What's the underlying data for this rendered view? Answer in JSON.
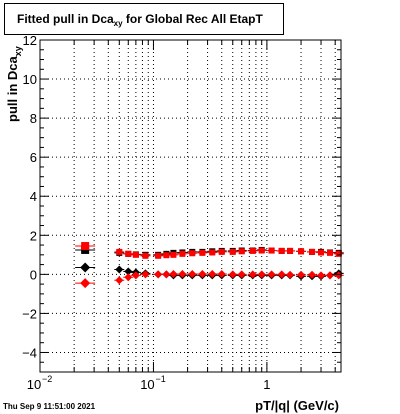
{
  "title": {
    "main": "Fitted pull in Dca",
    "sub": "xy",
    "rest": "  for Global Rec All EtapT"
  },
  "date_stamp": "Thu Sep  9 11:51:00 2021",
  "chart_data": {
    "type": "scatter",
    "xlabel": "pT/|q| (GeV/c)",
    "ylabel": "pull in Dca",
    "ylabel_sub": "xy",
    "xscale": "log",
    "xlim": [
      0.01,
      4.5
    ],
    "ylim": [
      -5,
      12
    ],
    "grid": true,
    "yticks": [
      -4,
      -2,
      0,
      2,
      4,
      6,
      8,
      10,
      12
    ],
    "ytick_labels": [
      "−4",
      "−2",
      "0",
      "2",
      "4",
      "6",
      "8",
      "10",
      "12"
    ],
    "xticks": [
      0.01,
      0.1,
      1
    ],
    "xtick_labels": [
      "10",
      "10",
      "1"
    ],
    "xtick_exponents": [
      "−2",
      "−1",
      ""
    ],
    "series": [
      {
        "color": "#000000",
        "marker": "square",
        "x": [
          0.025,
          0.05,
          0.06,
          0.07,
          0.085,
          0.11,
          0.13,
          0.15,
          0.18,
          0.22,
          0.27,
          0.33,
          0.4,
          0.5,
          0.6,
          0.75,
          0.9,
          1.1,
          1.35,
          1.6,
          2.0,
          2.5,
          3.0,
          3.6,
          4.3
        ],
        "y": [
          1.25,
          1.1,
          1.05,
          1.02,
          1.0,
          1.0,
          1.05,
          1.1,
          1.12,
          1.15,
          1.15,
          1.18,
          1.2,
          1.2,
          1.22,
          1.22,
          1.25,
          1.22,
          1.2,
          1.2,
          1.18,
          1.15,
          1.15,
          1.12,
          1.1
        ]
      },
      {
        "color": "#ff0000",
        "marker": "square",
        "x": [
          0.025,
          0.05,
          0.06,
          0.07,
          0.085,
          0.11,
          0.13,
          0.15,
          0.18,
          0.22,
          0.27,
          0.33,
          0.4,
          0.5,
          0.6,
          0.75,
          0.9,
          1.1,
          1.35,
          1.6,
          2.0,
          2.5,
          3.0,
          3.6,
          4.3
        ],
        "y": [
          1.45,
          1.15,
          1.05,
          1.0,
          0.95,
          0.95,
          0.98,
          1.0,
          1.05,
          1.08,
          1.1,
          1.12,
          1.15,
          1.15,
          1.18,
          1.2,
          1.22,
          1.22,
          1.2,
          1.2,
          1.18,
          1.15,
          1.12,
          1.1,
          1.05
        ]
      },
      {
        "color": "#000000",
        "marker": "diamond",
        "x": [
          0.025,
          0.05,
          0.06,
          0.07,
          0.085,
          0.11,
          0.13,
          0.15,
          0.18,
          0.22,
          0.27,
          0.33,
          0.4,
          0.5,
          0.6,
          0.75,
          0.9,
          1.1,
          1.35,
          1.6,
          2.0,
          2.5,
          3.0,
          3.6,
          4.3
        ],
        "y": [
          0.35,
          0.25,
          0.15,
          0.1,
          0.05,
          0.0,
          0.0,
          -0.05,
          -0.05,
          -0.05,
          -0.05,
          -0.05,
          -0.05,
          -0.05,
          -0.05,
          -0.05,
          -0.05,
          -0.05,
          -0.05,
          -0.05,
          -0.1,
          -0.1,
          -0.1,
          -0.05,
          0.05
        ]
      },
      {
        "color": "#ff0000",
        "marker": "diamond",
        "x": [
          0.025,
          0.05,
          0.06,
          0.07,
          0.085,
          0.11,
          0.13,
          0.15,
          0.18,
          0.22,
          0.27,
          0.33,
          0.4,
          0.5,
          0.6,
          0.75,
          0.9,
          1.1,
          1.35,
          1.6,
          2.0,
          2.5,
          3.0,
          3.6,
          4.3
        ],
        "y": [
          -0.45,
          -0.3,
          -0.15,
          -0.05,
          0.0,
          0.0,
          0.0,
          0.02,
          0.02,
          0.02,
          0.02,
          0.02,
          0.02,
          0.0,
          0.0,
          0.0,
          0.0,
          0.0,
          0.0,
          -0.02,
          -0.02,
          -0.02,
          -0.05,
          -0.05,
          -0.05
        ]
      }
    ]
  }
}
